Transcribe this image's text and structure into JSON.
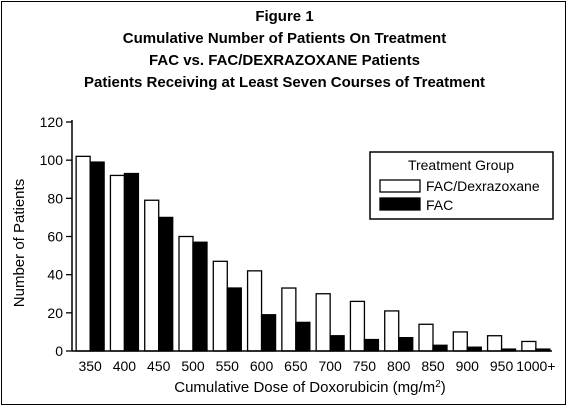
{
  "header": {
    "figure_label": "Figure 1",
    "title": "Cumulative Number of Patients On Treatment",
    "subtitle": "FAC vs. FAC/DEXRAZOXANE Patients",
    "subtitle2": "Patients Receiving at Least Seven Courses of Treatment"
  },
  "chart_data": {
    "type": "bar",
    "title": "Cumulative Number of Patients On Treatment",
    "xlabel": "Cumulative Dose of Doxorubicin (mg/m2)",
    "xlabel_main": "Cumulative Dose of Doxorubicin (mg/m",
    "xlabel_sup": "2",
    "xlabel_end": ")",
    "ylabel": "Number of Patients",
    "ylim": [
      0,
      120
    ],
    "yticks": [
      0,
      20,
      40,
      60,
      80,
      100,
      120
    ],
    "grid": false,
    "legend_title": "Treatment Group",
    "legend_position": "top-right",
    "categories": [
      "350",
      "400",
      "450",
      "500",
      "550",
      "600",
      "650",
      "700",
      "750",
      "800",
      "850",
      "900",
      "950",
      "1000+"
    ],
    "series": [
      {
        "name": "FAC/Dexrazoxane",
        "color": "#ffffff",
        "values": [
          102,
          92,
          79,
          60,
          47,
          42,
          33,
          30,
          26,
          21,
          14,
          10,
          8,
          5
        ]
      },
      {
        "name": "FAC",
        "color": "#000000",
        "values": [
          99,
          93,
          70,
          57,
          33,
          19,
          15,
          8,
          6,
          7,
          3,
          2,
          1,
          1
        ]
      }
    ]
  }
}
